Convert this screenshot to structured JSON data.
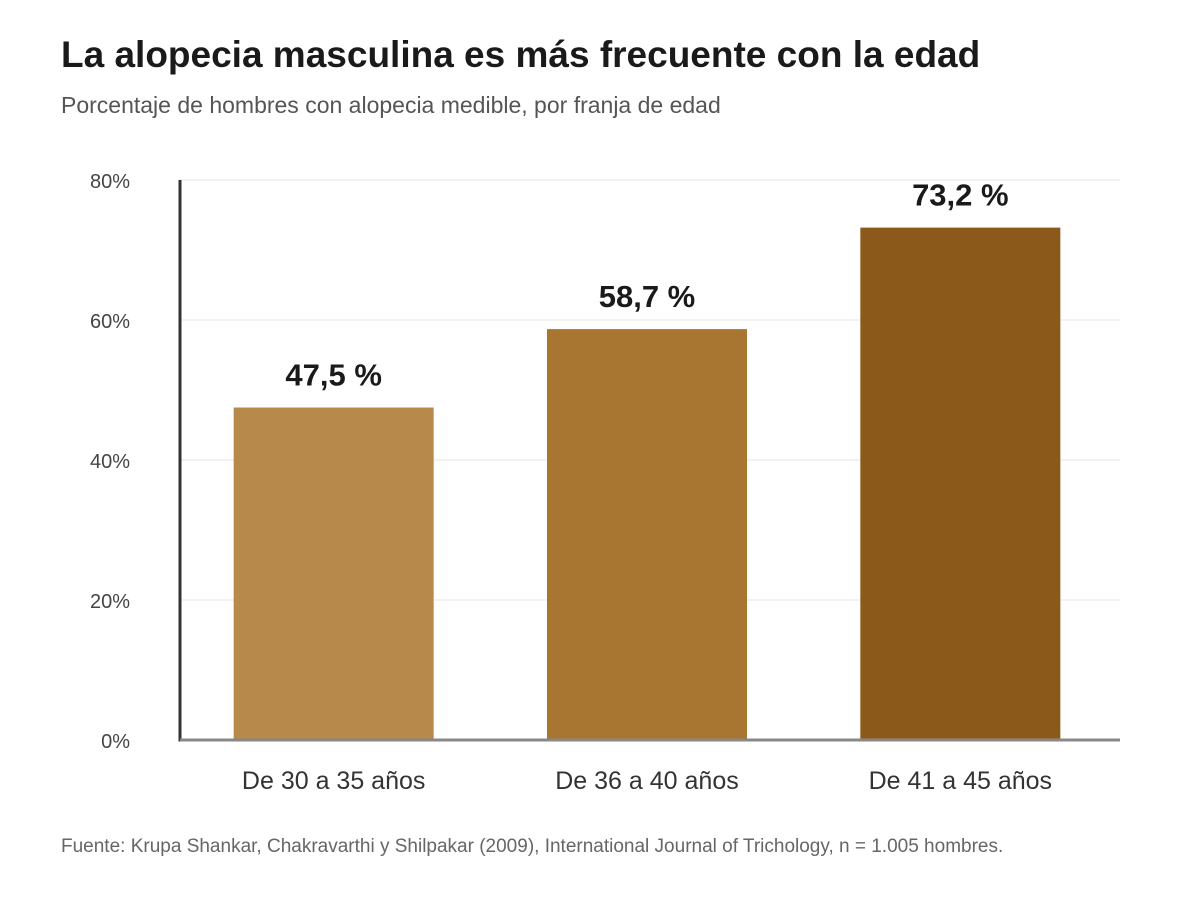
{
  "header": {
    "title": "La alopecia masculina es más frecuente con la edad",
    "subtitle": "Porcentaje de hombres con alopecia medible, por franja de edad"
  },
  "footer": {
    "source": "Fuente: Krupa Shankar, Chakravarthi y Shilpakar (2009), International Journal of Trichology, n = 1.005 hombres."
  },
  "colors": {
    "bars": [
      "#b78a4b",
      "#a97631",
      "#8b5a1a"
    ],
    "axis": "#333333",
    "baseline": "#888888",
    "grid": "#eeeeee",
    "tick_text": "#444444",
    "category_text": "#333333",
    "value_label": "#1a1a1a"
  },
  "chart_data": {
    "type": "bar",
    "categories": [
      "De 30 a 35 años",
      "De 36 a 40 años",
      "De 41 a 45 años"
    ],
    "values": [
      47.5,
      58.7,
      73.2
    ],
    "value_labels": [
      "47,5 %",
      "58,7 %",
      "73,2 %"
    ],
    "ylim": [
      0,
      80
    ],
    "yticks": [
      0,
      20,
      40,
      60,
      80
    ],
    "ytick_labels": [
      "0%",
      "20%",
      "40%",
      "60%",
      "80%"
    ],
    "xlabel": "",
    "ylabel": "",
    "grid": true,
    "legend": "none"
  }
}
